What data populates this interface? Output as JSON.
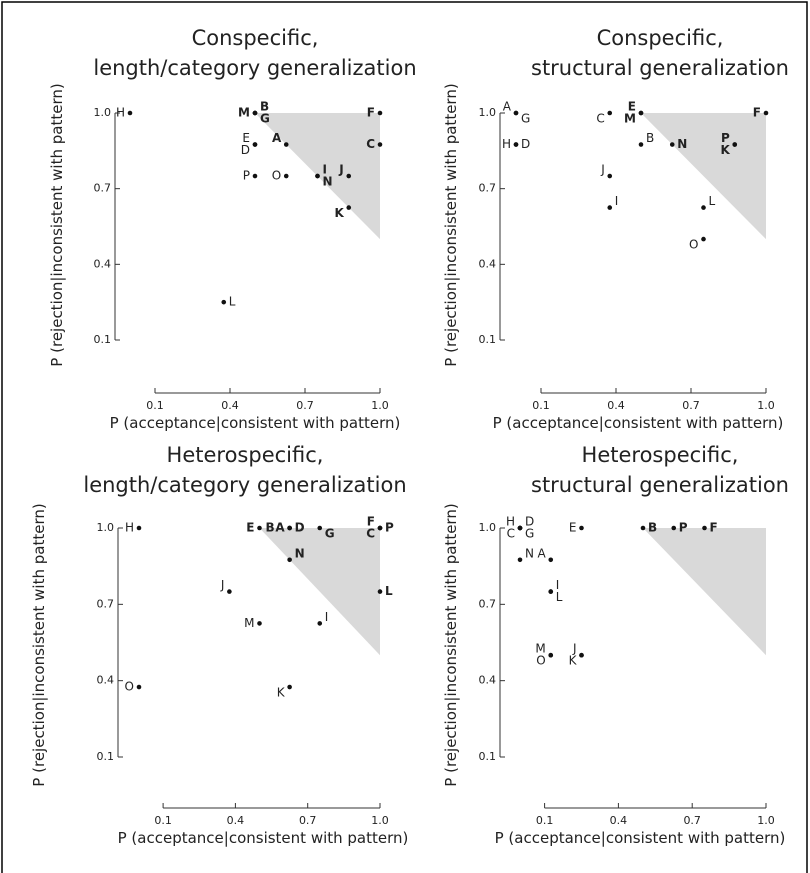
{
  "chart_data": [
    {
      "type": "scatter",
      "title": [
        "Conspecific,",
        "length/category generalization"
      ],
      "xlabel": "P (acceptance|consistent with pattern)",
      "ylabel": "P (rejection|inconsistent with pattern)",
      "xlim": [
        0,
        1
      ],
      "ylim": [
        0.1,
        1
      ],
      "xticks": [
        0.1,
        0.4,
        0.7,
        {
          "value": 1,
          "label": "1.0"
        }
      ],
      "yticks": [
        0.1,
        0.4,
        0.7,
        {
          "value": 1,
          "label": "1.0"
        }
      ],
      "shaded_region": {
        "x": [
          0.5,
          1,
          1
        ],
        "y": [
          1,
          1,
          0.5
        ],
        "color": "#d9d9d9"
      },
      "points": {
        "labels": [
          "H",
          "M",
          "B",
          "G",
          "F",
          "E",
          "D",
          "A",
          "C",
          "P",
          "O",
          "I",
          "N",
          "J",
          "K",
          "L"
        ],
        "x": [
          0,
          0.5,
          0.5,
          0.5,
          1,
          0.5,
          0.5,
          0.625,
          1,
          0.5,
          0.625,
          0.75,
          0.75,
          0.875,
          0.875,
          0.375
        ],
        "y": [
          1,
          1,
          1,
          1,
          1,
          0.875,
          0.875,
          0.875,
          0.875,
          0.75,
          0.75,
          0.75,
          0.75,
          0.75,
          0.625,
          0.25
        ],
        "bold": [
          false,
          true,
          true,
          true,
          true,
          false,
          false,
          true,
          true,
          false,
          false,
          true,
          true,
          true,
          true,
          false
        ]
      }
    },
    {
      "type": "scatter",
      "title": [
        "Conspecific,",
        "structural generalization"
      ],
      "xlabel": "P (acceptance|consistent with pattern)",
      "ylabel": "P (rejection|inconsistent with pattern)",
      "xlim": [
        0,
        1
      ],
      "ylim": [
        0.1,
        1
      ],
      "xticks": [
        0.1,
        0.4,
        0.7,
        {
          "value": 1,
          "label": "1.0"
        }
      ],
      "yticks": [
        0.1,
        0.4,
        0.7,
        {
          "value": 1,
          "label": "1.0"
        }
      ],
      "shaded_region": {
        "x": [
          0.5,
          1,
          1
        ],
        "y": [
          1,
          1,
          0.5
        ],
        "color": "#d9d9d9"
      },
      "points": {
        "labels": [
          "A",
          "G",
          "H",
          "D",
          "C",
          "E",
          "M",
          "F",
          "B",
          "N",
          "P",
          "K",
          "J",
          "I",
          "L",
          "O"
        ],
        "x": [
          0,
          0,
          0,
          0,
          0.375,
          0.5,
          0.5,
          1,
          0.5,
          0.625,
          0.875,
          0.875,
          0.375,
          0.375,
          0.75,
          0.75
        ],
        "y": [
          1,
          1,
          0.875,
          0.875,
          1,
          1,
          1,
          1,
          0.875,
          0.875,
          0.875,
          0.875,
          0.75,
          0.625,
          0.625,
          0.5
        ],
        "bold": [
          false,
          false,
          false,
          false,
          false,
          true,
          true,
          true,
          false,
          true,
          true,
          true,
          false,
          false,
          false,
          false
        ]
      }
    },
    {
      "type": "scatter",
      "title": [
        "Heterospecific,",
        "length/category generalization"
      ],
      "xlabel": "P (acceptance|consistent with pattern)",
      "ylabel": "P (rejection|inconsistent with pattern)",
      "xlim": [
        0,
        1
      ],
      "ylim": [
        0.1,
        1
      ],
      "xticks": [
        0.1,
        0.4,
        0.7,
        {
          "value": 1,
          "label": "1.0"
        }
      ],
      "yticks": [
        0.1,
        0.4,
        0.7,
        {
          "value": 1,
          "label": "1.0"
        }
      ],
      "shaded_region": {
        "x": [
          0.5,
          1,
          1
        ],
        "y": [
          1,
          1,
          0.5
        ],
        "color": "#d9d9d9"
      },
      "points": {
        "labels": [
          "H",
          "E",
          "B",
          "A",
          "D",
          "G",
          "F",
          "C",
          "P",
          "N",
          "J",
          "L",
          "M",
          "I",
          "O",
          "K"
        ],
        "x": [
          0,
          0.5,
          0.625,
          0.625,
          0.625,
          0.75,
          1,
          1,
          1,
          0.625,
          0.375,
          1,
          0.5,
          0.75,
          0,
          0.625
        ],
        "y": [
          1,
          1,
          1,
          1,
          1,
          1,
          1,
          1,
          1,
          0.875,
          0.75,
          0.75,
          0.625,
          0.625,
          0.375,
          0.375
        ],
        "bold": [
          false,
          true,
          true,
          true,
          true,
          true,
          true,
          true,
          true,
          true,
          false,
          true,
          false,
          false,
          false,
          false
        ]
      }
    },
    {
      "type": "scatter",
      "title": [
        "Heterospecific,",
        "structural generalization"
      ],
      "xlabel": "P (acceptance|consistent with pattern)",
      "ylabel": "P (rejection|inconsistent with pattern)",
      "xlim": [
        0,
        1
      ],
      "ylim": [
        0.1,
        1
      ],
      "xticks": [
        0.1,
        0.4,
        0.7,
        {
          "value": 1,
          "label": "1.0"
        }
      ],
      "yticks": [
        0.1,
        0.4,
        0.7,
        {
          "value": 1,
          "label": "1.0"
        }
      ],
      "shaded_region": {
        "x": [
          0.5,
          1,
          1
        ],
        "y": [
          1,
          1,
          0.5
        ],
        "color": "#d9d9d9"
      },
      "points": {
        "labels": [
          "H",
          "D",
          "C",
          "G",
          "E",
          "B",
          "P",
          "F",
          "N",
          "A",
          "I",
          "L",
          "M",
          "O",
          "J",
          "K"
        ],
        "x": [
          0,
          0,
          0,
          0,
          0.25,
          0.5,
          0.625,
          0.75,
          0,
          0.125,
          0.125,
          0.125,
          0.125,
          0.125,
          0.25,
          0.25
        ],
        "y": [
          1,
          1,
          1,
          1,
          1,
          1,
          1,
          1,
          0.875,
          0.875,
          0.75,
          0.75,
          0.5,
          0.5,
          0.5,
          0.5
        ],
        "bold": [
          false,
          false,
          false,
          false,
          false,
          true,
          true,
          true,
          false,
          false,
          false,
          false,
          false,
          false,
          false,
          false
        ]
      }
    }
  ]
}
